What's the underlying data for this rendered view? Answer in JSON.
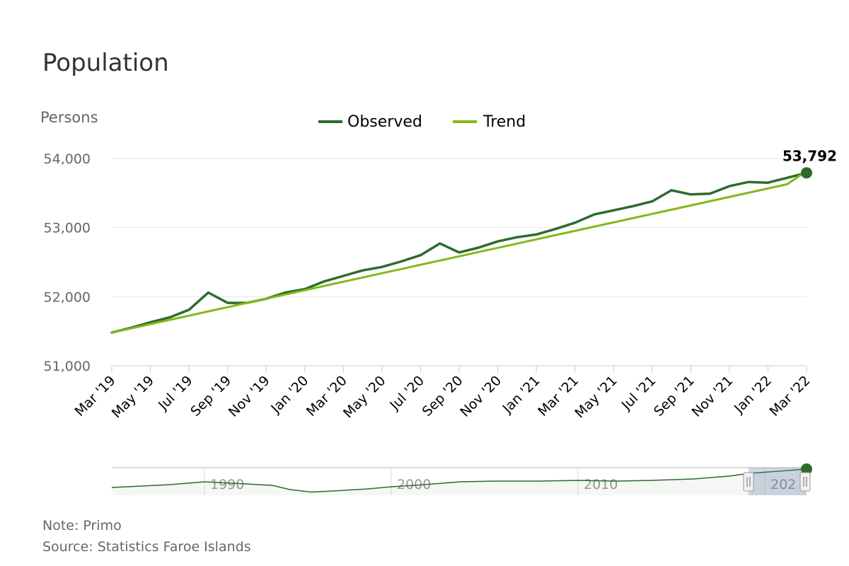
{
  "chart_data": {
    "type": "line",
    "title": "Population",
    "ylabel": "Persons",
    "ylim": [
      51000,
      54000
    ],
    "yticks": [
      "51,000",
      "52,000",
      "53,000",
      "54,000"
    ],
    "grid": true,
    "legend_position": "top-center",
    "x": [
      "2019-03",
      "2019-04",
      "2019-05",
      "2019-06",
      "2019-07",
      "2019-08",
      "2019-09",
      "2019-10",
      "2019-11",
      "2019-12",
      "2020-01",
      "2020-02",
      "2020-03",
      "2020-04",
      "2020-05",
      "2020-06",
      "2020-07",
      "2020-08",
      "2020-09",
      "2020-10",
      "2020-11",
      "2020-12",
      "2021-01",
      "2021-02",
      "2021-03",
      "2021-04",
      "2021-05",
      "2021-06",
      "2021-07",
      "2021-08",
      "2021-09",
      "2021-10",
      "2021-11",
      "2021-12",
      "2022-01",
      "2022-02",
      "2022-03"
    ],
    "xtick_labels": [
      "Mar '19",
      "May '19",
      "Jul '19",
      "Sep '19",
      "Nov '19",
      "Jan '20",
      "Mar '20",
      "May '20",
      "Jul '20",
      "Sep '20",
      "Nov '20",
      "Jan '21",
      "Mar '21",
      "May '21",
      "Jul '21",
      "Sep '21",
      "Nov '21",
      "Jan '22",
      "Mar '22"
    ],
    "series": [
      {
        "name": "Observed",
        "color": "#2e6b2e",
        "values": [
          51480,
          51550,
          51630,
          51700,
          51810,
          52060,
          51910,
          51910,
          51970,
          52060,
          52110,
          52220,
          52300,
          52380,
          52430,
          52510,
          52600,
          52770,
          52640,
          52710,
          52800,
          52860,
          52900,
          52980,
          53070,
          53190,
          53250,
          53310,
          53380,
          53540,
          53480,
          53490,
          53600,
          53660,
          53650,
          53720,
          53792
        ]
      },
      {
        "name": "Trend",
        "color": "#84b818",
        "values": [
          51480,
          51541,
          51603,
          51664,
          51725,
          51787,
          51848,
          51910,
          51971,
          52032,
          52094,
          52155,
          52216,
          52278,
          52339,
          52400,
          52462,
          52523,
          52584,
          52646,
          52707,
          52768,
          52830,
          52891,
          52952,
          53014,
          53075,
          53136,
          53198,
          53259,
          53320,
          53382,
          53443,
          53504,
          53566,
          53627,
          53820
        ]
      }
    ],
    "last_point_label": "53,792"
  },
  "navigator": {
    "year_labels": [
      "1990",
      "2000",
      "2010",
      "202"
    ],
    "color": "#2e6b2e",
    "selected_range": [
      "2019-03",
      "2022-03"
    ]
  },
  "footer": {
    "note": "Note: Primo",
    "source": "Source: Statistics Faroe Islands"
  }
}
